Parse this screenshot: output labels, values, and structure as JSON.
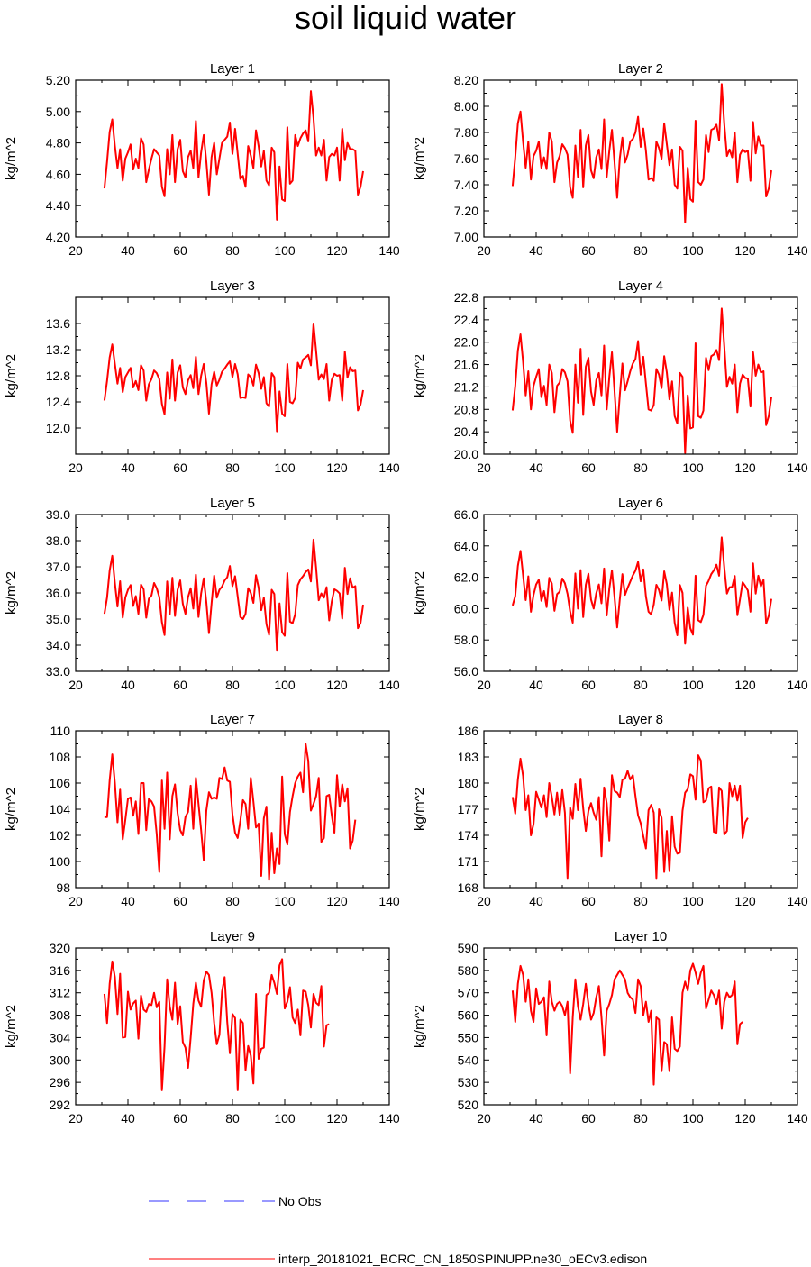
{
  "title": "soil liquid water",
  "colors": {
    "model_line": "#ff0000",
    "obs_line": "#3333ff",
    "axis": "#000000"
  },
  "legend": {
    "obs_label": "No Obs",
    "model_label": "interp_20181021_BCRC_CN_1850SPINUPP.ne30_oECv3.edison"
  },
  "chart_data": [
    {
      "type": "line",
      "title": "Layer 1",
      "ylabel": "kg/m^2",
      "xlim": [
        20,
        140
      ],
      "ylim": [
        4.2,
        5.2
      ],
      "xticks": [
        20,
        40,
        60,
        80,
        100,
        120,
        140
      ],
      "yticks": [
        "4.20",
        "4.40",
        "4.60",
        "4.80",
        "5.00",
        "5.20"
      ],
      "x_start": 31,
      "values": [
        4.51,
        4.68,
        4.87,
        4.95,
        4.78,
        4.64,
        4.76,
        4.56,
        4.7,
        4.74,
        4.79,
        4.63,
        4.7,
        4.64,
        4.83,
        4.79,
        4.55,
        4.63,
        4.7,
        4.76,
        4.74,
        4.72,
        4.52,
        4.46,
        4.76,
        4.6,
        4.85,
        4.55,
        4.76,
        4.82,
        4.62,
        4.58,
        4.71,
        4.75,
        4.64,
        4.94,
        4.58,
        4.74,
        4.85,
        4.68,
        4.47,
        4.71,
        4.8,
        4.6,
        4.7,
        4.8,
        4.82,
        4.84,
        4.93,
        4.73,
        4.89,
        4.73,
        4.57,
        4.59,
        4.52,
        4.78,
        4.72,
        4.64,
        4.88,
        4.78,
        4.65,
        4.75,
        4.56,
        4.53,
        4.77,
        4.74,
        4.31,
        4.65,
        4.44,
        4.43,
        4.9,
        4.54,
        4.56,
        4.85,
        4.78,
        4.83,
        4.86,
        4.88,
        4.81,
        5.13,
        4.96,
        4.72,
        4.77,
        4.72,
        4.82,
        4.56,
        4.71,
        4.73,
        4.72,
        4.77,
        4.56,
        4.89,
        4.69,
        4.8,
        4.76,
        4.76,
        4.75,
        4.47,
        4.52,
        4.62
      ]
    },
    {
      "type": "line",
      "title": "Layer 2",
      "ylabel": "kg/m^2",
      "xlim": [
        20,
        140
      ],
      "ylim": [
        7.0,
        8.2
      ],
      "xticks": [
        20,
        40,
        60,
        80,
        100,
        120,
        140
      ],
      "yticks": [
        "7.00",
        "7.20",
        "7.40",
        "7.60",
        "7.80",
        "8.00",
        "8.20"
      ],
      "x_start": 31,
      "values": [
        7.39,
        7.61,
        7.87,
        7.96,
        7.73,
        7.53,
        7.73,
        7.44,
        7.62,
        7.66,
        7.73,
        7.53,
        7.61,
        7.52,
        7.8,
        7.73,
        7.42,
        7.57,
        7.62,
        7.71,
        7.68,
        7.63,
        7.38,
        7.3,
        7.7,
        7.46,
        7.82,
        7.38,
        7.7,
        7.78,
        7.51,
        7.45,
        7.61,
        7.67,
        7.52,
        7.9,
        7.46,
        7.66,
        7.82,
        7.57,
        7.3,
        7.6,
        7.76,
        7.57,
        7.63,
        7.73,
        7.75,
        7.8,
        7.92,
        7.69,
        7.83,
        7.66,
        7.44,
        7.45,
        7.43,
        7.73,
        7.68,
        7.6,
        7.87,
        7.71,
        7.55,
        7.67,
        7.4,
        7.37,
        7.69,
        7.66,
        7.11,
        7.53,
        7.29,
        7.27,
        7.89,
        7.42,
        7.4,
        7.44,
        7.78,
        7.65,
        7.82,
        7.83,
        7.86,
        7.74,
        8.17,
        7.86,
        7.62,
        7.67,
        7.61,
        7.8,
        7.42,
        7.63,
        7.67,
        7.65,
        7.66,
        7.43,
        7.88,
        7.64,
        7.77,
        7.7,
        7.7,
        7.31,
        7.37,
        7.51
      ]
    },
    {
      "type": "line",
      "title": "Layer 3",
      "ylabel": "kg/m^2",
      "xlim": [
        20,
        140
      ],
      "ylim": [
        11.6,
        14.0
      ],
      "xticks": [
        20,
        40,
        60,
        80,
        100,
        120,
        140
      ],
      "yticks": [
        "12.0",
        "12.4",
        "12.8",
        "13.2",
        "13.6"
      ],
      "x_start": 31,
      "values": [
        12.42,
        12.72,
        13.08,
        13.28,
        12.98,
        12.68,
        12.92,
        12.55,
        12.78,
        12.85,
        12.92,
        12.62,
        12.72,
        12.58,
        12.96,
        12.88,
        12.42,
        12.67,
        12.75,
        12.88,
        12.84,
        12.75,
        12.37,
        12.21,
        12.85,
        12.45,
        13.05,
        12.42,
        12.85,
        12.96,
        12.62,
        12.52,
        12.73,
        12.81,
        12.61,
        13.09,
        12.52,
        12.8,
        12.98,
        12.69,
        12.22,
        12.67,
        12.86,
        12.65,
        12.74,
        12.86,
        12.91,
        12.97,
        13.02,
        12.78,
        12.98,
        12.82,
        12.46,
        12.47,
        12.46,
        12.82,
        12.78,
        12.65,
        12.97,
        12.84,
        12.6,
        12.78,
        12.38,
        12.33,
        12.84,
        12.78,
        11.95,
        12.56,
        12.22,
        12.18,
        12.98,
        12.4,
        12.38,
        12.46,
        13.0,
        12.91,
        13.05,
        13.08,
        13.12,
        12.96,
        13.6,
        13.18,
        12.74,
        12.82,
        12.75,
        12.98,
        12.42,
        12.74,
        12.83,
        12.8,
        12.81,
        12.42,
        13.17,
        12.77,
        12.93,
        12.87,
        12.88,
        12.27,
        12.36,
        12.58
      ]
    },
    {
      "type": "line",
      "title": "Layer 4",
      "ylabel": "kg/m^2",
      "xlim": [
        20,
        140
      ],
      "ylim": [
        20.0,
        22.8
      ],
      "xticks": [
        20,
        40,
        60,
        80,
        100,
        120,
        140
      ],
      "yticks": [
        "20.0",
        "20.4",
        "20.8",
        "21.2",
        "21.6",
        "22.0",
        "22.4",
        "22.8"
      ],
      "x_start": 31,
      "values": [
        20.78,
        21.22,
        21.85,
        22.14,
        21.65,
        21.05,
        21.48,
        20.8,
        21.22,
        21.38,
        21.52,
        21.02,
        21.22,
        20.88,
        21.6,
        21.45,
        20.75,
        21.22,
        21.28,
        21.52,
        21.46,
        21.3,
        20.6,
        20.38,
        21.6,
        20.92,
        21.88,
        20.7,
        21.56,
        21.72,
        21.12,
        20.88,
        21.32,
        21.45,
        21.05,
        21.94,
        20.8,
        21.38,
        21.82,
        21.12,
        20.4,
        21.05,
        21.62,
        21.14,
        21.3,
        21.48,
        21.62,
        21.7,
        22.02,
        21.42,
        21.74,
        21.26,
        20.8,
        20.78,
        20.88,
        21.52,
        21.42,
        21.18,
        21.75,
        21.46,
        20.98,
        21.3,
        20.68,
        20.55,
        21.45,
        21.38,
        20.02,
        21.05,
        20.46,
        20.48,
        21.98,
        20.68,
        20.65,
        20.78,
        21.72,
        21.5,
        21.75,
        21.78,
        21.86,
        21.68,
        22.6,
        21.92,
        21.2,
        21.38,
        21.26,
        21.6,
        20.75,
        21.26,
        21.42,
        21.36,
        21.35,
        20.85,
        21.82,
        21.4,
        21.6,
        21.46,
        21.48,
        20.52,
        20.68,
        21.02
      ]
    },
    {
      "type": "line",
      "title": "Layer 5",
      "ylabel": "kg/m^2",
      "xlim": [
        20,
        140
      ],
      "ylim": [
        33.0,
        39.0
      ],
      "xticks": [
        20,
        40,
        60,
        80,
        100,
        120,
        140
      ],
      "yticks": [
        "33.0",
        "34.0",
        "35.0",
        "36.0",
        "37.0",
        "38.0",
        "39.0"
      ],
      "x_start": 31,
      "values": [
        35.2,
        35.82,
        36.86,
        37.42,
        36.38,
        35.48,
        36.45,
        35.06,
        35.82,
        36.12,
        36.3,
        35.5,
        35.88,
        35.2,
        36.32,
        36.14,
        35.05,
        35.78,
        35.9,
        36.38,
        36.18,
        35.84,
        34.88,
        34.39,
        36.44,
        35.18,
        36.58,
        35.12,
        36.12,
        36.48,
        35.58,
        35.2,
        35.84,
        36.18,
        35.4,
        36.7,
        35.08,
        35.98,
        36.56,
        35.64,
        34.46,
        35.6,
        36.66,
        35.82,
        36.12,
        36.24,
        36.48,
        36.6,
        37.03,
        36.26,
        36.64,
        35.86,
        35.08,
        35.0,
        35.2,
        36.18,
        36.0,
        35.62,
        36.68,
        36.2,
        35.34,
        35.82,
        34.8,
        34.4,
        36.12,
        35.96,
        33.82,
        35.6,
        34.5,
        34.36,
        36.76,
        34.9,
        34.84,
        35.18,
        36.3,
        36.52,
        36.64,
        36.8,
        36.9,
        36.44,
        38.04,
        36.96,
        35.72,
        35.98,
        35.82,
        36.22,
        34.95,
        35.68,
        36.14,
        36.08,
        35.98,
        35.02,
        36.96,
        35.96,
        36.56,
        36.2,
        36.26,
        34.65,
        34.85,
        35.55
      ]
    },
    {
      "type": "line",
      "title": "Layer 6",
      "ylabel": "kg/m^2",
      "xlim": [
        20,
        140
      ],
      "ylim": [
        56.0,
        66.0
      ],
      "xticks": [
        20,
        40,
        60,
        80,
        100,
        120,
        140
      ],
      "yticks": [
        "56.0",
        "58.0",
        "60.0",
        "62.0",
        "64.0",
        "66.0"
      ],
      "x_start": 31,
      "values": [
        60.2,
        60.8,
        62.72,
        63.68,
        62.12,
        60.54,
        62.06,
        59.8,
        60.88,
        61.54,
        61.84,
        60.5,
        61.12,
        60.1,
        61.96,
        61.6,
        59.86,
        60.92,
        61.08,
        61.92,
        61.62,
        60.94,
        59.82,
        59.1,
        62.24,
        60.0,
        62.46,
        59.46,
        61.52,
        62.22,
        60.58,
        60.0,
        60.98,
        61.54,
        60.34,
        62.56,
        59.56,
        61.28,
        62.44,
        60.72,
        58.8,
        60.58,
        62.2,
        60.88,
        61.32,
        61.72,
        62.12,
        62.42,
        62.98,
        61.74,
        62.5,
        60.78,
        59.8,
        59.64,
        60.26,
        61.52,
        61.18,
        60.52,
        62.38,
        61.56,
        59.92,
        61.02,
        59.1,
        58.3,
        61.5,
        61.0,
        57.76,
        60.06,
        58.74,
        58.34,
        62.1,
        59.26,
        59.14,
        59.6,
        61.46,
        61.78,
        62.2,
        62.44,
        62.8,
        62.1,
        64.54,
        62.6,
        60.96,
        61.36,
        61.38,
        62.08,
        59.58,
        60.6,
        61.68,
        61.44,
        61.16,
        59.8,
        62.88,
        60.96,
        62.1,
        61.42,
        61.84,
        59.04,
        59.54,
        60.62
      ]
    },
    {
      "type": "line",
      "title": "Layer 7",
      "ylabel": "kg/m^2",
      "xlim": [
        20,
        140
      ],
      "ylim": [
        98,
        110
      ],
      "xticks": [
        20,
        40,
        60,
        80,
        100,
        120,
        140
      ],
      "yticks": [
        "98",
        "100",
        "102",
        "104",
        "106",
        "108",
        "110"
      ],
      "x_start": 31,
      "values": [
        103.4,
        103.4,
        106.2,
        108.2,
        106.0,
        103.0,
        105.5,
        101.7,
        103.2,
        104.8,
        104.9,
        103.5,
        104.6,
        102.1,
        106.0,
        106.0,
        102.4,
        104.8,
        104.6,
        104.2,
        102.1,
        99.2,
        106.2,
        102.5,
        106.8,
        101.7,
        105.0,
        105.9,
        103.7,
        102.4,
        102.0,
        103.4,
        103.8,
        105.8,
        102.5,
        106.4,
        104.4,
        102.4,
        100.1,
        103.9,
        105.3,
        104.8,
        104.9,
        104.8,
        106.4,
        106.3,
        107.2,
        106.2,
        106.1,
        103.6,
        102.2,
        101.8,
        103.1,
        104.7,
        104.4,
        102.5,
        106.4,
        104.6,
        102.6,
        102.9,
        98.9,
        103.3,
        104.2,
        98.6,
        102.2,
        99.1,
        101.0,
        99.8,
        106.5,
        102.1,
        101.3,
        103.8,
        105.0,
        106.0,
        106.5,
        106.8,
        105.3,
        109.0,
        107.7,
        103.9,
        104.4,
        105.0,
        106.4,
        101.5,
        101.8,
        105.0,
        105.1,
        103.5,
        102.2,
        106.6,
        104.2,
        105.9,
        104.6,
        105.6,
        101.0,
        101.6,
        103.2
      ]
    },
    {
      "type": "line",
      "title": "Layer 8",
      "ylabel": "kg/m^2",
      "xlim": [
        20,
        140
      ],
      "ylim": [
        168,
        186
      ],
      "xticks": [
        20,
        40,
        60,
        80,
        100,
        120,
        140
      ],
      "yticks": [
        "168",
        "171",
        "174",
        "177",
        "180",
        "183",
        "186"
      ],
      "x_start": 31,
      "values": [
        178.4,
        176.5,
        180.4,
        182.8,
        180.8,
        176.9,
        178.6,
        174.0,
        175.3,
        179.0,
        178.1,
        177.2,
        178.6,
        176.1,
        180.0,
        178.4,
        176.4,
        178.9,
        176.3,
        179.2,
        176.6,
        169.1,
        177.2,
        175.9,
        179.9,
        176.9,
        180.5,
        177.1,
        174.5,
        176.8,
        177.7,
        176.6,
        175.8,
        178.4,
        171.6,
        179.5,
        177.7,
        173.4,
        180.9,
        179.1,
        178.9,
        178.4,
        180.4,
        180.5,
        181.4,
        180.4,
        180.9,
        178.5,
        176.3,
        175.4,
        173.9,
        172.5,
        176.9,
        177.5,
        176.6,
        169.1,
        177.0,
        176.0,
        169.8,
        174.5,
        169.9,
        176.2,
        172.7,
        171.9,
        172.0,
        176.8,
        178.9,
        179.3,
        181.0,
        180.8,
        178.1,
        183.2,
        182.6,
        177.8,
        178.0,
        179.4,
        179.6,
        174.4,
        174.3,
        179.5,
        179.1,
        174.1,
        174.5,
        180.0,
        178.5,
        179.7,
        178.0,
        179.7,
        173.7,
        175.5,
        176.0
      ]
    },
    {
      "type": "line",
      "title": "Layer 9",
      "ylabel": "kg/m^2",
      "xlim": [
        20,
        140
      ],
      "ylim": [
        292,
        320
      ],
      "xticks": [
        20,
        40,
        60,
        80,
        100,
        120,
        140
      ],
      "yticks": [
        "292",
        "296",
        "300",
        "304",
        "308",
        "312",
        "316",
        "320"
      ],
      "x_start": 31,
      "values": [
        311.8,
        306.6,
        313.6,
        317.6,
        314.8,
        308.2,
        315.4,
        304.0,
        304.1,
        312.2,
        309.0,
        310.1,
        310.6,
        303.8,
        311.5,
        309.0,
        308.6,
        310.0,
        309.8,
        312.0,
        309.4,
        310.4,
        294.6,
        302.4,
        314.4,
        309.5,
        307.2,
        313.8,
        306.4,
        309.6,
        303.2,
        302.2,
        298.6,
        304.0,
        310.0,
        313.8,
        310.6,
        309.5,
        314.2,
        315.8,
        315.2,
        312.0,
        306.6,
        302.8,
        304.5,
        312.2,
        314.8,
        306.8,
        301.2,
        308.2,
        307.5,
        294.6,
        307.2,
        306.6,
        298.2,
        302.5,
        300.8,
        295.8,
        311.8,
        300.2,
        302.0,
        302.2,
        311.6,
        312.0,
        315.2,
        313.8,
        311.8,
        316.9,
        318.0,
        309.2,
        310.4,
        313.0,
        307.6,
        306.6,
        309.0,
        304.4,
        312.4,
        312.2,
        309.8,
        305.8,
        311.8,
        310.2,
        309.8,
        313.2,
        302.4,
        306.2,
        306.4
      ]
    },
    {
      "type": "line",
      "title": "Layer 10",
      "ylabel": "kg/m^2",
      "xlim": [
        20,
        140
      ],
      "ylim": [
        520,
        590
      ],
      "xticks": [
        20,
        40,
        60,
        80,
        100,
        120,
        140
      ],
      "yticks": [
        "520",
        "530",
        "540",
        "550",
        "560",
        "570",
        "580",
        "590"
      ],
      "x_start": 31,
      "values": [
        571,
        557,
        574,
        582,
        578,
        566,
        576,
        562,
        557,
        572,
        565,
        566,
        568,
        551,
        575,
        566,
        562,
        565,
        566,
        564,
        560,
        566,
        534,
        559,
        576,
        564,
        558,
        565,
        574,
        565,
        558,
        561,
        568,
        573,
        559,
        542,
        562,
        565,
        569,
        576,
        578,
        580,
        578,
        576,
        570,
        568,
        567,
        561,
        576,
        573,
        560,
        566,
        557,
        562,
        529,
        559,
        558,
        535,
        548,
        547,
        535,
        559,
        545,
        544,
        546,
        570,
        575,
        571,
        580,
        583,
        579,
        574,
        579,
        582,
        563,
        567,
        571,
        569,
        565,
        571,
        554,
        566,
        570,
        568,
        569,
        575,
        547,
        556,
        557
      ]
    }
  ]
}
